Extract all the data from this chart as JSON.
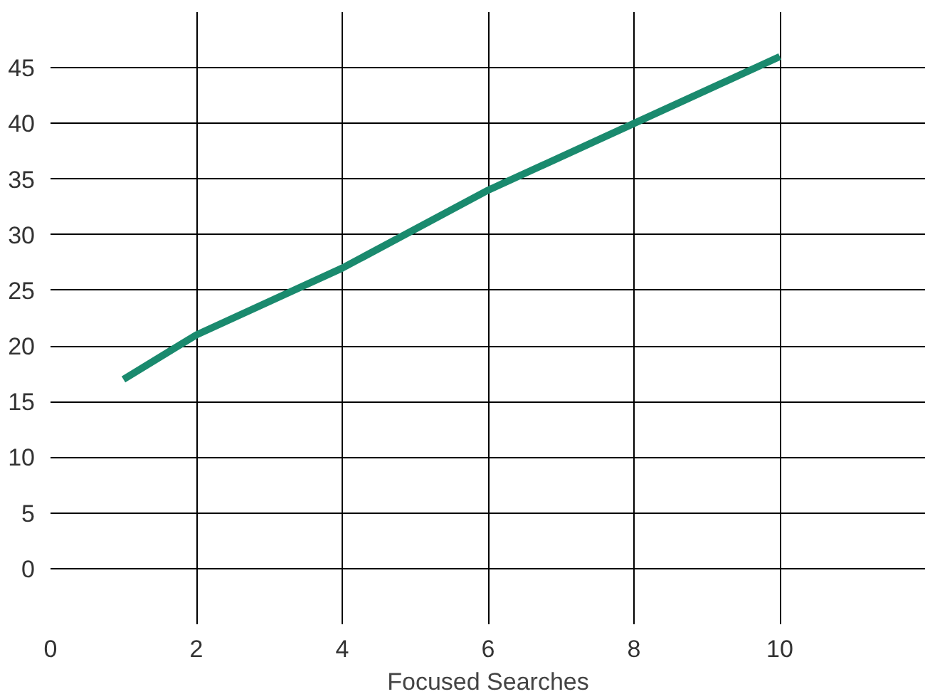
{
  "chart_data": {
    "type": "line",
    "xlabel": "Focused Searches",
    "x": [
      1,
      2,
      4,
      6,
      8,
      10
    ],
    "series": [
      {
        "color": "#1a8a6e",
        "values": [
          17,
          21,
          27,
          34,
          40,
          46
        ]
      }
    ],
    "xlim": [
      0,
      12
    ],
    "ylim": [
      -5,
      50
    ],
    "xticks": [
      0,
      2,
      4,
      6,
      8,
      10
    ],
    "yticks": [
      0,
      5,
      10,
      15,
      20,
      25,
      30,
      35,
      40,
      45
    ],
    "grid": true,
    "marker": "none",
    "line_style": "solid"
  }
}
